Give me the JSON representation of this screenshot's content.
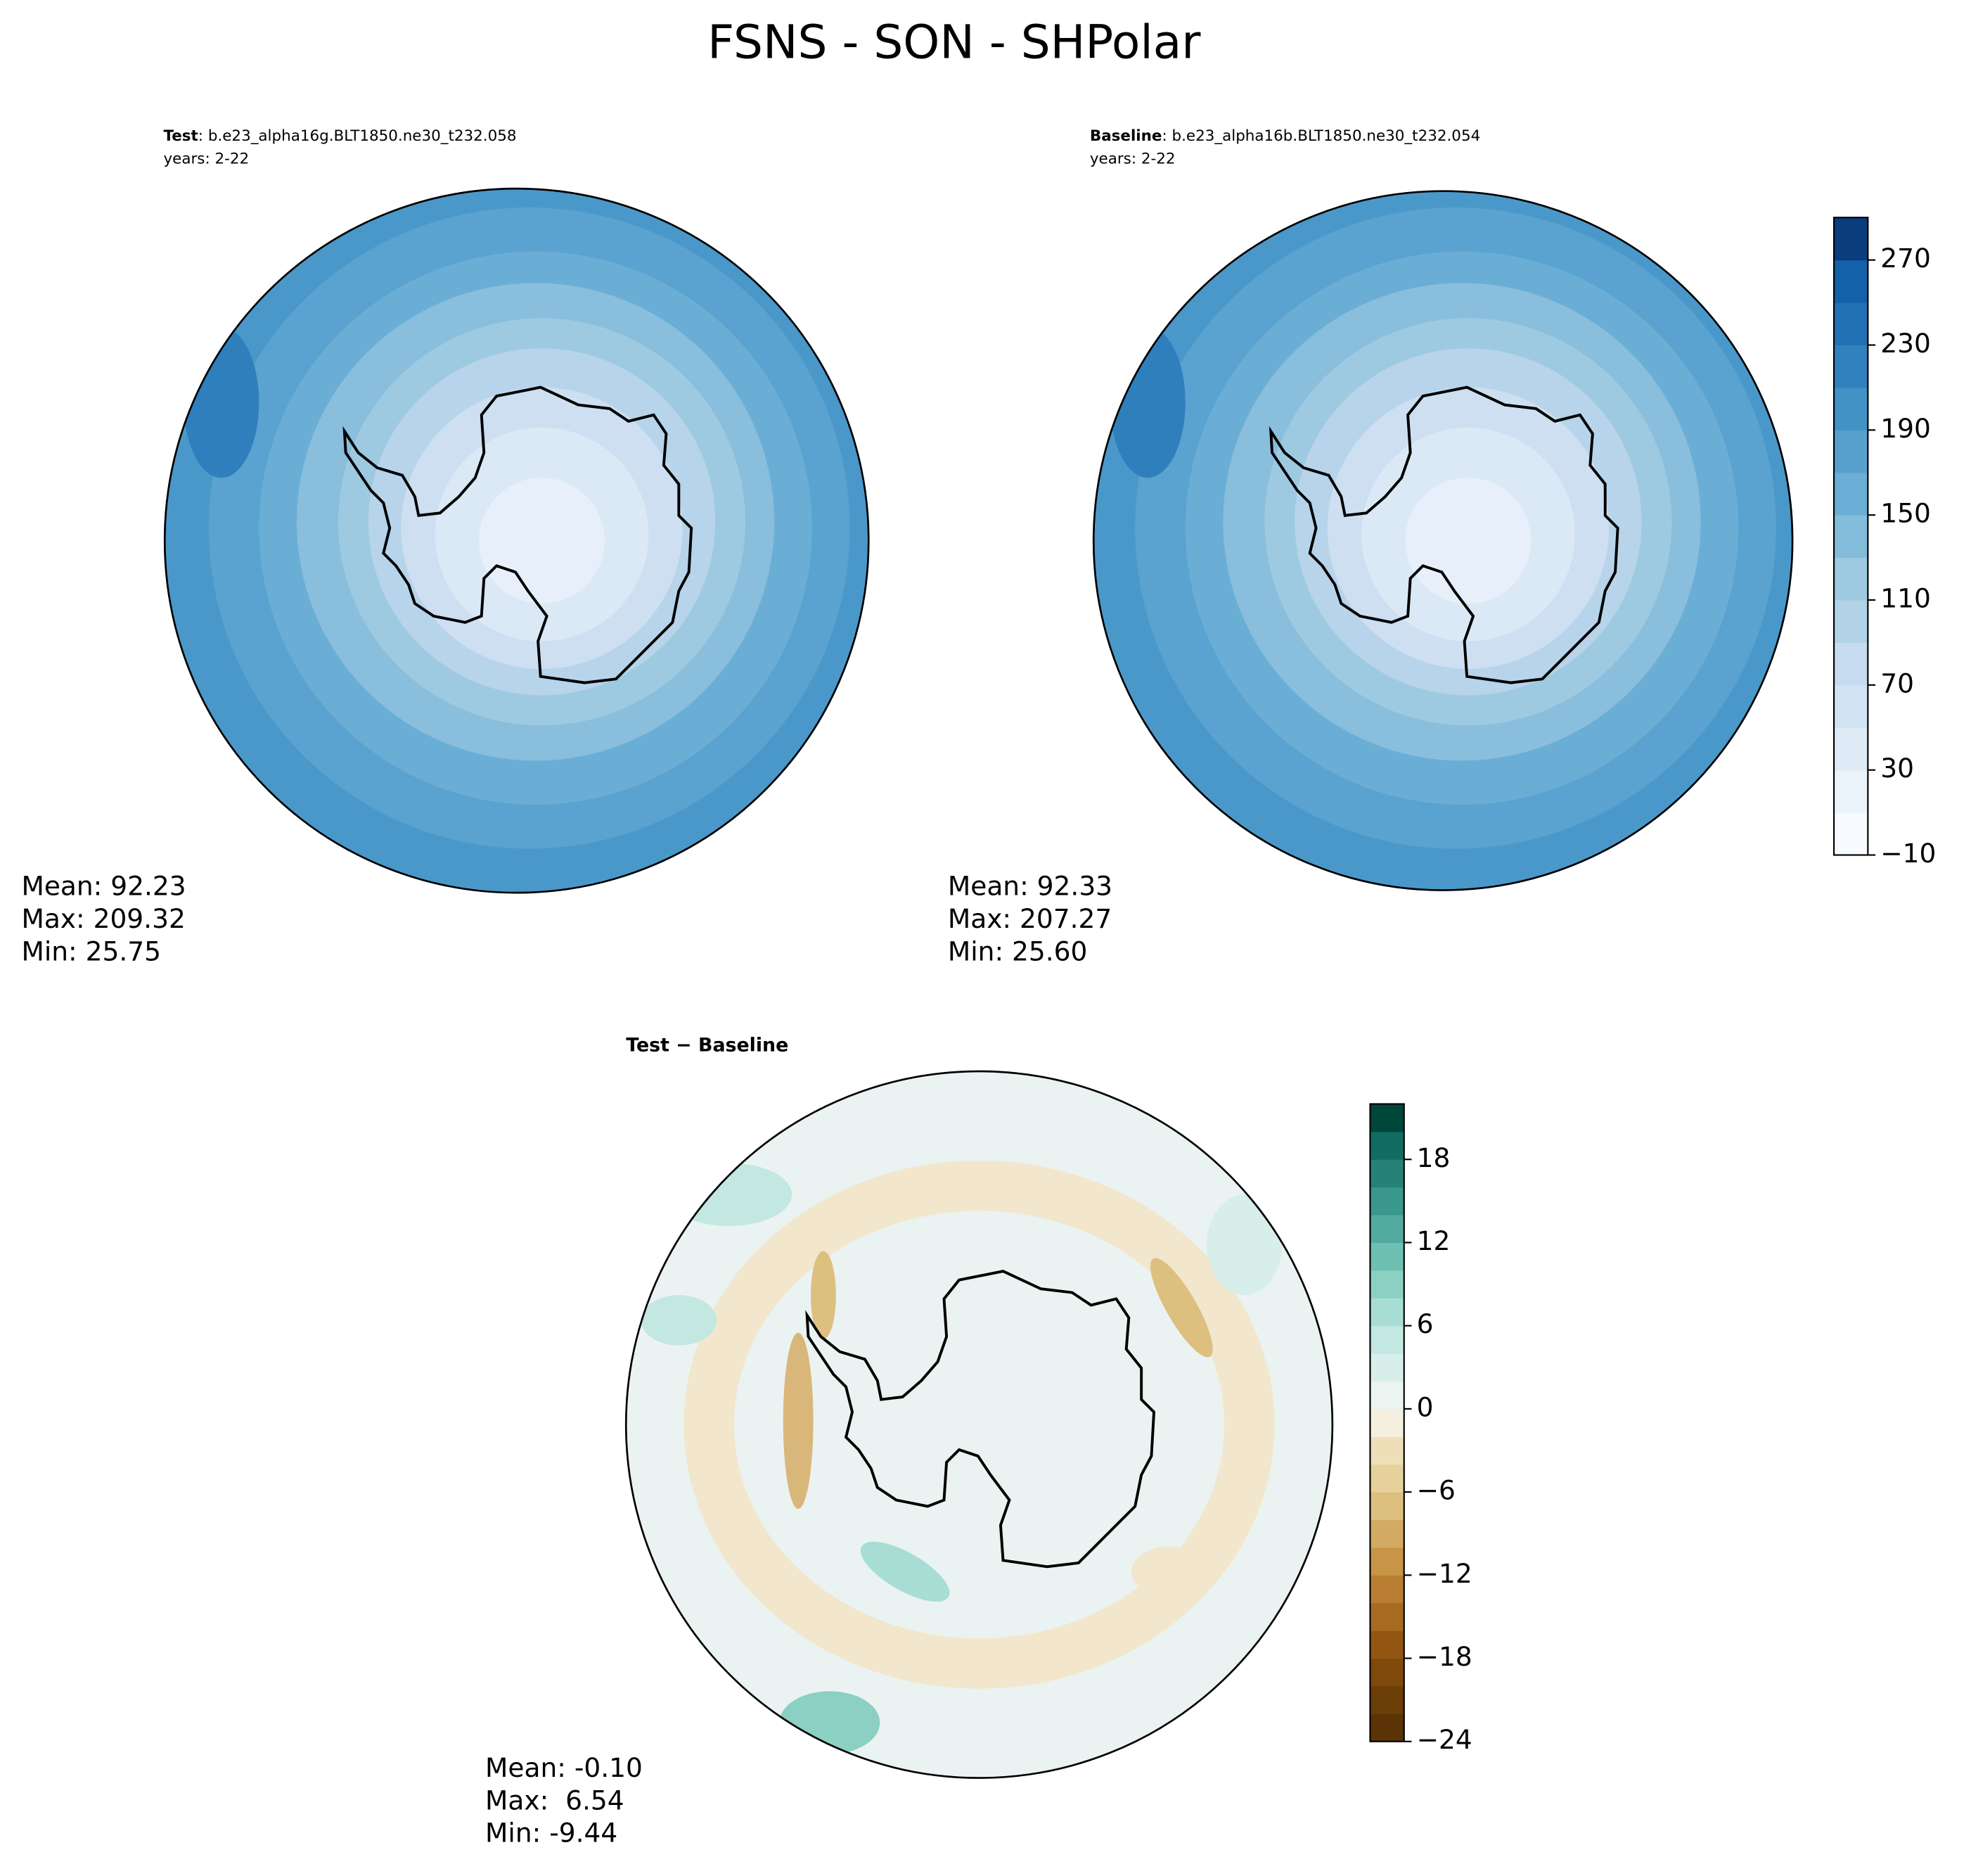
{
  "title": "FSNS - SON - SHPolar",
  "panels": [
    {
      "label": "Test",
      "case": ": b.e23_alpha16g.BLT1850.ne30_t232.058",
      "years": "years: 2-22",
      "stats": [
        "Mean: 92.23",
        "Max: 209.32",
        "Min: 25.75"
      ]
    },
    {
      "label": "Baseline",
      "case": ": b.e23_alpha16b.BLT1850.ne30_t232.054",
      "years": "years: 2-22",
      "stats": [
        "Mean: 92.33",
        "Max: 207.27",
        "Min: 25.60"
      ]
    },
    {
      "label": "Test − Baseline",
      "stats": [
        "Mean: -0.10",
        "Max:  6.54",
        "Min: -9.44"
      ]
    }
  ],
  "colorbars": [
    {
      "ylim": [
        -10,
        290
      ],
      "yticks": [
        {
          "value": -10,
          "label": "−10"
        },
        30,
        70,
        110,
        150,
        190,
        230,
        270
      ],
      "colors": [
        "#f7fbff",
        "#ebf3fb",
        "#deebf7",
        "#d2e3f3",
        "#c6dbef",
        "#b2d2e8",
        "#9ecae1",
        "#84bcdb",
        "#6baed6",
        "#57a0ce",
        "#4292c6",
        "#3082be",
        "#2171b5",
        "#1361a9",
        "#0b3c7e"
      ]
    },
    {
      "ylim": [
        -24,
        22
      ],
      "yticks": [
        {
          "value": -24,
          "label": "−24"
        },
        {
          "value": -18,
          "label": "−18"
        },
        {
          "value": -12,
          "label": "−12"
        },
        {
          "value": -6,
          "label": "−6"
        },
        0,
        6,
        12,
        18
      ],
      "colors": [
        "#5a3306",
        "#6c3e07",
        "#7f4909",
        "#935612",
        "#a76a21",
        "#b97d32",
        "#c89445",
        "#d3aa63",
        "#ddbf80",
        "#e6d09c",
        "#eedfb9",
        "#f5efe0",
        "#ecf4f2",
        "#d8eeea",
        "#c3e7e1",
        "#a8ddd4",
        "#8bd0c3",
        "#6ec0b2",
        "#52ab9e",
        "#3a978b",
        "#268277",
        "#126c62",
        "#00463b"
      ]
    }
  ]
}
